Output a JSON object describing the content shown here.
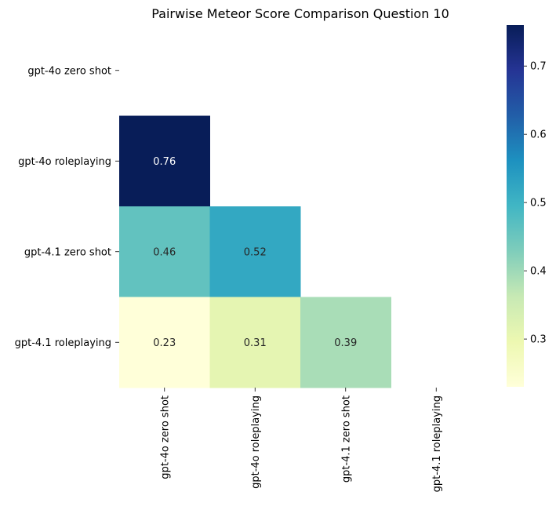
{
  "chart_data": {
    "type": "heatmap",
    "title": "Pairwise Meteor Score Comparison Question 10",
    "row_labels": [
      "gpt-4o zero shot",
      "gpt-4o roleplaying",
      "gpt-4.1 zero shot",
      "gpt-4.1 roleplaying"
    ],
    "col_labels": [
      "gpt-4o zero shot",
      "gpt-4o roleplaying",
      "gpt-4.1 zero shot",
      "gpt-4.1 roleplaying"
    ],
    "mask": "upper-triangle-including-diagonal",
    "cells": [
      {
        "row": 1,
        "col": 0,
        "value": 0.76,
        "label": "0.76"
      },
      {
        "row": 2,
        "col": 0,
        "value": 0.46,
        "label": "0.46"
      },
      {
        "row": 2,
        "col": 1,
        "value": 0.52,
        "label": "0.52"
      },
      {
        "row": 3,
        "col": 0,
        "value": 0.23,
        "label": "0.23"
      },
      {
        "row": 3,
        "col": 1,
        "value": 0.31,
        "label": "0.31"
      },
      {
        "row": 3,
        "col": 2,
        "value": 0.39,
        "label": "0.39"
      }
    ],
    "colorbar": {
      "colormap": "YlGnBu",
      "vmin": 0.23,
      "vmax": 0.76,
      "ticks": [
        {
          "value": 0.3,
          "label": "0.3"
        },
        {
          "value": 0.4,
          "label": "0.4"
        },
        {
          "value": 0.5,
          "label": "0.5"
        },
        {
          "value": 0.6,
          "label": "0.6"
        },
        {
          "value": 0.7,
          "label": "0.7"
        }
      ],
      "stops": [
        "#ffffd9",
        "#edf8b1",
        "#c7e9b4",
        "#7fcdbb",
        "#41b6c4",
        "#1d91c0",
        "#225ea8",
        "#253494",
        "#081d58"
      ]
    },
    "grid": false,
    "legend": "colorbar-right"
  }
}
